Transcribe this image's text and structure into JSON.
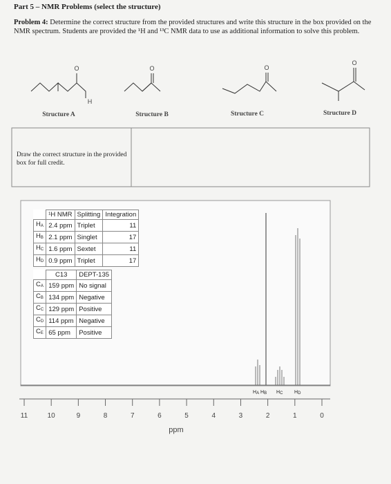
{
  "header": {
    "title": "Part 5 – NMR Problems (select the structure)"
  },
  "problem": {
    "label": "Problem 4:",
    "text": "Determine the correct structure from the provided structures and write this structure in the box provided on the NMR spectrum. Students are provided the ¹H and ¹³C NMR data to use as additional information to solve this problem."
  },
  "structures": [
    {
      "label": "Structure A",
      "atoms": [
        "O",
        "H"
      ]
    },
    {
      "label": "Structure B",
      "atoms": [
        "O"
      ]
    },
    {
      "label": "Structure C",
      "atoms": [
        "O"
      ]
    },
    {
      "label": "Structure D",
      "atoms": [
        "O"
      ]
    }
  ],
  "answer_box": {
    "instruction": "Draw the correct structure in the provided box for full credit."
  },
  "h_nmr_table": {
    "header": [
      "¹H NMR",
      "Splitting",
      "Integration"
    ],
    "rows": [
      {
        "proton": {
          "letter": "H",
          "sub": "A"
        },
        "shift": "2.4 ppm",
        "splitting": "Triplet",
        "integration": 11
      },
      {
        "proton": {
          "letter": "H",
          "sub": "B"
        },
        "shift": "2.1 ppm",
        "splitting": "Singlet",
        "integration": 17
      },
      {
        "proton": {
          "letter": "H",
          "sub": "C"
        },
        "shift": "1.6 ppm",
        "splitting": "Sextet",
        "integration": 11
      },
      {
        "proton": {
          "letter": "H",
          "sub": "D"
        },
        "shift": "0.9 ppm",
        "splitting": "Triplet",
        "integration": 17
      }
    ]
  },
  "c13_table": {
    "header": [
      "C13",
      "DEPT-135"
    ],
    "rows": [
      {
        "carbon": {
          "letter": "C",
          "sub": "A"
        },
        "shift": "159 ppm",
        "dept": "No signal"
      },
      {
        "carbon": {
          "letter": "C",
          "sub": "B"
        },
        "shift": "134 ppm",
        "dept": "Negative"
      },
      {
        "carbon": {
          "letter": "C",
          "sub": "C"
        },
        "shift": "129 ppm",
        "dept": "Positive"
      },
      {
        "carbon": {
          "letter": "C",
          "sub": "D"
        },
        "shift": "114 ppm",
        "dept": "Negative"
      },
      {
        "carbon": {
          "letter": "C",
          "sub": "E"
        },
        "shift": "65 ppm",
        "dept": "Positive"
      }
    ]
  },
  "spectrum": {
    "peak_labels": [
      {
        "letter": "H",
        "sub": "A"
      },
      {
        "letter": "H",
        "sub": "B"
      },
      {
        "letter": "H",
        "sub": "C"
      },
      {
        "letter": "H",
        "sub": "D"
      }
    ],
    "xticks": [
      11,
      10,
      9,
      8,
      7,
      6,
      5,
      4,
      3,
      2,
      1,
      0
    ],
    "xlabel": "ppm"
  }
}
